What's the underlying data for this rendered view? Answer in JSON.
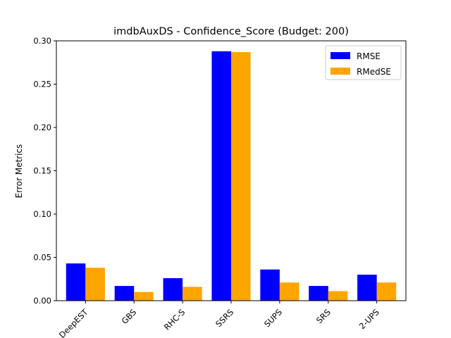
{
  "chart_data": {
    "type": "bar",
    "title": "imdbAuxDS - Confidence_Score (Budget: 200)",
    "xlabel": "",
    "ylabel": "Error Metrics",
    "categories": [
      "DeepEST",
      "GBS",
      "RHC-S",
      "SSRS",
      "SUPS",
      "SRS",
      "2-UPS"
    ],
    "series": [
      {
        "name": "RMSE",
        "color": "#0000ff",
        "values": [
          0.043,
          0.017,
          0.026,
          0.288,
          0.036,
          0.017,
          0.03
        ]
      },
      {
        "name": "RMedSE",
        "color": "#ffa500",
        "values": [
          0.038,
          0.01,
          0.016,
          0.287,
          0.021,
          0.011,
          0.021
        ]
      }
    ],
    "ylim": [
      0,
      0.3
    ],
    "yticks": [
      "0.00",
      "0.05",
      "0.10",
      "0.15",
      "0.20",
      "0.25",
      "0.30"
    ],
    "legend_position": "top-right",
    "grid": false
  }
}
